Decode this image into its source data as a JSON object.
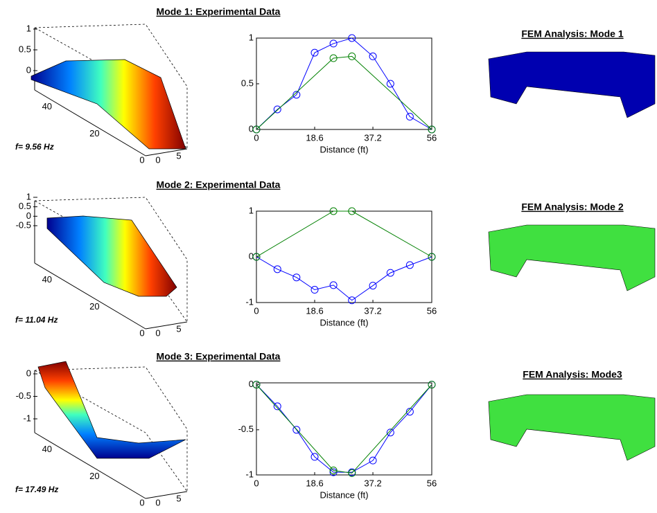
{
  "chart_data": [
    {
      "type": "surface3d",
      "annotation": "f= 9.56 Hz",
      "zlim": [
        0,
        1
      ],
      "zticks": [
        1,
        0.5,
        0
      ],
      "ylim": [
        0,
        56
      ],
      "yticks": [
        40,
        20,
        0
      ],
      "xlim": [
        0,
        7
      ],
      "xticks": [
        0,
        5
      ]
    },
    {
      "type": "line",
      "title": "Mode 1: Experimental Data",
      "xlabel": "Distance (ft)",
      "xlim": [
        0,
        56
      ],
      "xticks": [
        0,
        18.6,
        37.2,
        56
      ],
      "ylim": [
        0,
        1
      ],
      "yticks": [
        0,
        0.5,
        1
      ],
      "series": [
        {
          "color": "#0000ff",
          "x": [
            0,
            6.7,
            12.8,
            18.6,
            24.6,
            30.5,
            37.2,
            42.8,
            49,
            56
          ],
          "values": [
            0,
            0.22,
            0.38,
            0.84,
            0.94,
            1.0,
            0.8,
            0.5,
            0.14,
            0
          ]
        },
        {
          "color": "#008000",
          "x": [
            0,
            24.6,
            30.5,
            56
          ],
          "values": [
            0,
            0.78,
            0.8,
            0
          ]
        }
      ]
    },
    {
      "type": "image",
      "title": "FEM Analysis: Mode 1"
    },
    {
      "type": "surface3d",
      "annotation": "f= 11.04 Hz",
      "zlim": [
        -0.5,
        1
      ],
      "zticks": [
        1,
        0.5,
        0,
        -0.5
      ],
      "ylim": [
        0,
        56
      ],
      "yticks": [
        40,
        20,
        0
      ],
      "xlim": [
        0,
        7
      ],
      "xticks": [
        0,
        5
      ]
    },
    {
      "type": "line",
      "title": "Mode 2: Experimental Data",
      "xlabel": "Distance (ft)",
      "xlim": [
        0,
        56
      ],
      "xticks": [
        0,
        18.6,
        37.2,
        56
      ],
      "ylim": [
        -1,
        1
      ],
      "yticks": [
        -1,
        0,
        1
      ],
      "series": [
        {
          "color": "#0000ff",
          "x": [
            0,
            6.7,
            12.8,
            18.6,
            24.6,
            30.5,
            37.2,
            42.8,
            49,
            56
          ],
          "values": [
            0,
            -0.27,
            -0.45,
            -0.72,
            -0.62,
            -0.95,
            -0.63,
            -0.35,
            -0.18,
            0
          ]
        },
        {
          "color": "#008000",
          "x": [
            0,
            24.6,
            30.5,
            56
          ],
          "values": [
            0,
            1,
            1,
            0
          ]
        }
      ]
    },
    {
      "type": "image",
      "title": "FEM Analysis: Mode 2"
    },
    {
      "type": "surface3d",
      "annotation": "f= 17.49 Hz",
      "zlim": [
        -1,
        0
      ],
      "zticks": [
        0,
        -0.5,
        -1
      ],
      "ylim": [
        0,
        56
      ],
      "yticks": [
        40,
        20,
        0
      ],
      "xlim": [
        0,
        7
      ],
      "xticks": [
        0,
        5
      ]
    },
    {
      "type": "line",
      "title": "Mode 3: Experimental Data",
      "xlabel": "Distance (ft)",
      "xlim": [
        0,
        56
      ],
      "xticks": [
        0,
        18.6,
        37.2,
        56
      ],
      "ylim": [
        -1,
        0.02
      ],
      "yticks": [
        0,
        -0.5,
        -1
      ],
      "series": [
        {
          "color": "#0000ff",
          "x": [
            0,
            6.7,
            12.8,
            18.6,
            24.6,
            30.5,
            37.2,
            42.8,
            49,
            56
          ],
          "values": [
            0,
            -0.24,
            -0.5,
            -0.8,
            -0.97,
            -0.97,
            -0.84,
            -0.53,
            -0.3,
            0
          ]
        },
        {
          "color": "#008000",
          "x": [
            0,
            24.6,
            30.5,
            56
          ],
          "values": [
            0,
            -0.95,
            -0.98,
            0
          ]
        }
      ]
    },
    {
      "type": "image",
      "title": "FEM Analysis: Mode3"
    }
  ]
}
